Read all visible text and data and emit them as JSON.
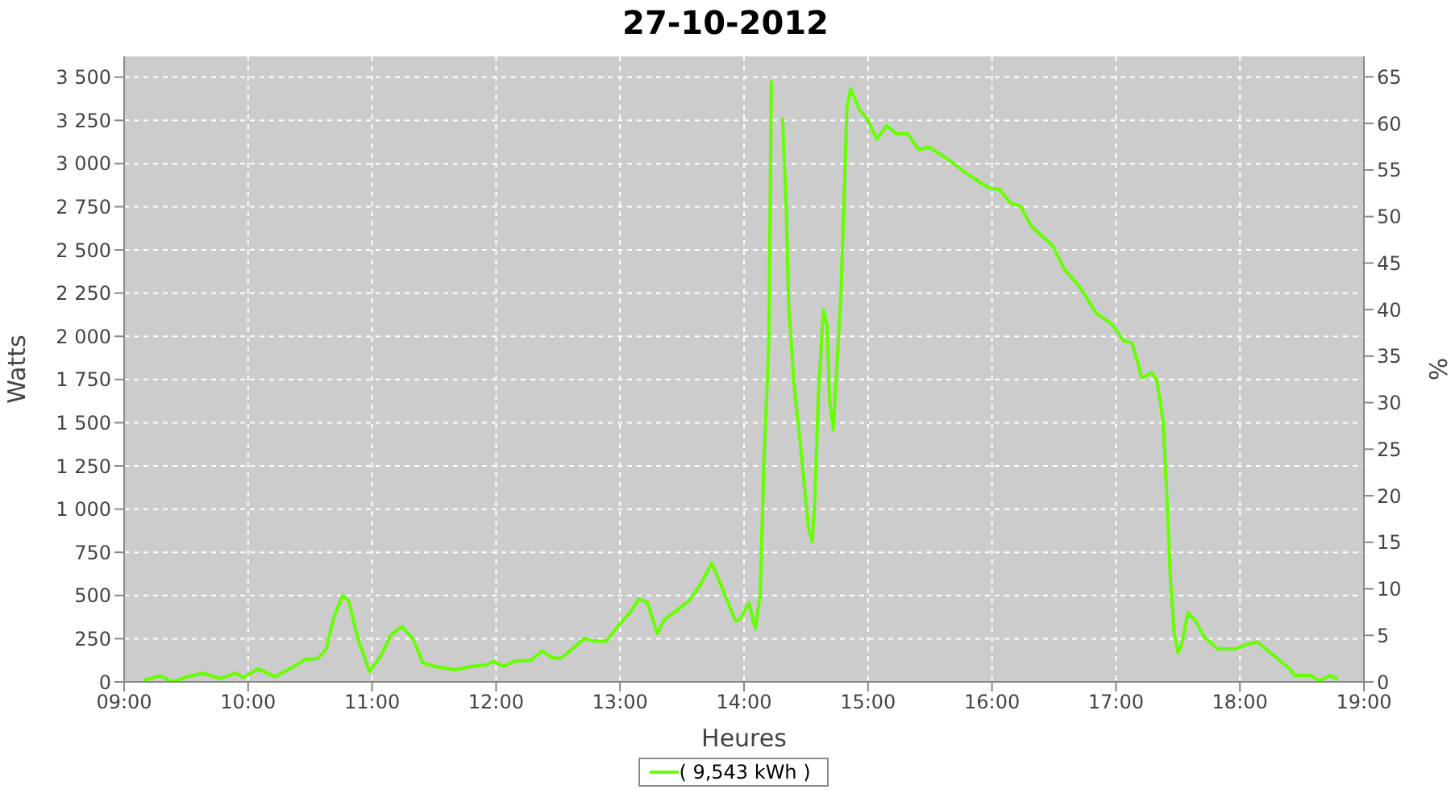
{
  "chart_data": {
    "type": "line",
    "title": "27-10-2012",
    "xlabel": "Heures",
    "ylabel": "Watts",
    "y2label": "%",
    "xlim": [
      9,
      19
    ],
    "xticks": [
      {
        "value": 9,
        "label": "09:00"
      },
      {
        "value": 10,
        "label": "10:00"
      },
      {
        "value": 11,
        "label": "11:00"
      },
      {
        "value": 12,
        "label": "12:00"
      },
      {
        "value": 13,
        "label": "13:00"
      },
      {
        "value": 14,
        "label": "14:00"
      },
      {
        "value": 15,
        "label": "15:00"
      },
      {
        "value": 16,
        "label": "16:00"
      },
      {
        "value": 17,
        "label": "17:00"
      },
      {
        "value": 18,
        "label": "18:00"
      },
      {
        "value": 19,
        "label": "19:00"
      }
    ],
    "ylim": [
      0,
      3620
    ],
    "yticks": [
      0,
      250,
      500,
      750,
      {
        "value": 1000,
        "label": "1 000"
      },
      {
        "value": 1250,
        "label": "1 250"
      },
      {
        "value": 1500,
        "label": "1 500"
      },
      {
        "value": 1750,
        "label": "1 750"
      },
      {
        "value": 2000,
        "label": "2 000"
      },
      {
        "value": 2250,
        "label": "2 250"
      },
      {
        "value": 2500,
        "label": "2 500"
      },
      {
        "value": 2750,
        "label": "2 750"
      },
      {
        "value": 3000,
        "label": "3 000"
      },
      {
        "value": 3250,
        "label": "3 250"
      },
      {
        "value": 3500,
        "label": "3 500"
      }
    ],
    "y2lim": [
      0,
      67.2
    ],
    "y2ticks": [
      0,
      5,
      10,
      15,
      20,
      25,
      30,
      35,
      40,
      45,
      50,
      55,
      60,
      65
    ],
    "grid": true,
    "legend": "bottom",
    "marker": "none",
    "line_style": "solid",
    "series": [
      {
        "name": "( 9,543 kWh )",
        "color": "#66ff00",
        "x": [
          9.16,
          9.29,
          9.39,
          9.51,
          9.64,
          9.77,
          9.9,
          9.96,
          10.08,
          10.22,
          10.37,
          10.46,
          10.56,
          10.63,
          10.69,
          10.76,
          10.81,
          10.89,
          10.98,
          11.07,
          11.15,
          11.24,
          11.33,
          11.41,
          11.5,
          11.67,
          11.8,
          11.93,
          11.98,
          12.06,
          12.15,
          12.28,
          12.37,
          12.45,
          12.52,
          12.63,
          12.71,
          12.8,
          12.89,
          12.99,
          13.09,
          13.15,
          13.22,
          13.3,
          13.36,
          13.45,
          13.56,
          13.65,
          13.74,
          13.82,
          13.93,
          13.97,
          14.04,
          14.09,
          14.13,
          14.16,
          14.2,
          14.22,
          14.23,
          14.3,
          14.31,
          14.34,
          14.36,
          14.4,
          14.47,
          14.52,
          14.55,
          14.57,
          14.6,
          14.64,
          14.67,
          14.69,
          14.72,
          14.74,
          14.78,
          14.81,
          14.83,
          14.86,
          14.93,
          14.99,
          15.07,
          15.15,
          15.23,
          15.32,
          15.41,
          15.49,
          15.63,
          15.8,
          15.97,
          16.06,
          16.15,
          16.23,
          16.32,
          16.49,
          16.58,
          16.71,
          16.84,
          16.97,
          17.06,
          17.13,
          17.21,
          17.29,
          17.33,
          17.38,
          17.41,
          17.44,
          17.47,
          17.5,
          17.53,
          17.58,
          17.64,
          17.71,
          17.82,
          17.97,
          18.05,
          18.14,
          18.27,
          18.4,
          18.44,
          18.57,
          18.64,
          18.73,
          18.79
        ],
        "values": [
          10,
          35,
          0,
          30,
          50,
          20,
          50,
          25,
          75,
          30,
          90,
          130,
          135,
          190,
          370,
          500,
          470,
          240,
          60,
          150,
          270,
          320,
          250,
          110,
          90,
          70,
          90,
          100,
          120,
          90,
          120,
          125,
          180,
          140,
          135,
          200,
          250,
          235,
          235,
          330,
          410,
          480,
          460,
          280,
          364,
          410,
          472,
          565,
          688,
          549,
          352,
          364,
          457,
          309,
          503,
          1259,
          1969,
          3481,
          null,
          null,
          3265,
          2740,
          2185,
          1753,
          1259,
          889,
          812,
          1043,
          1660,
          2154,
          2062,
          1629,
          1460,
          1722,
          2216,
          2864,
          3327,
          3435,
          3311,
          3265,
          3142,
          3219,
          3172,
          3172,
          3080,
          3095,
          3033,
          2940,
          2860,
          2850,
          2771,
          2753,
          2635,
          2525,
          2392,
          2284,
          2135,
          2068,
          1975,
          1960,
          1759,
          1790,
          1744,
          1512,
          1080,
          586,
          278,
          170,
          216,
          401,
          355,
          262,
          191,
          191,
          216,
          231,
          154,
          77,
          37,
          37,
          6,
          37,
          15
        ]
      }
    ]
  }
}
